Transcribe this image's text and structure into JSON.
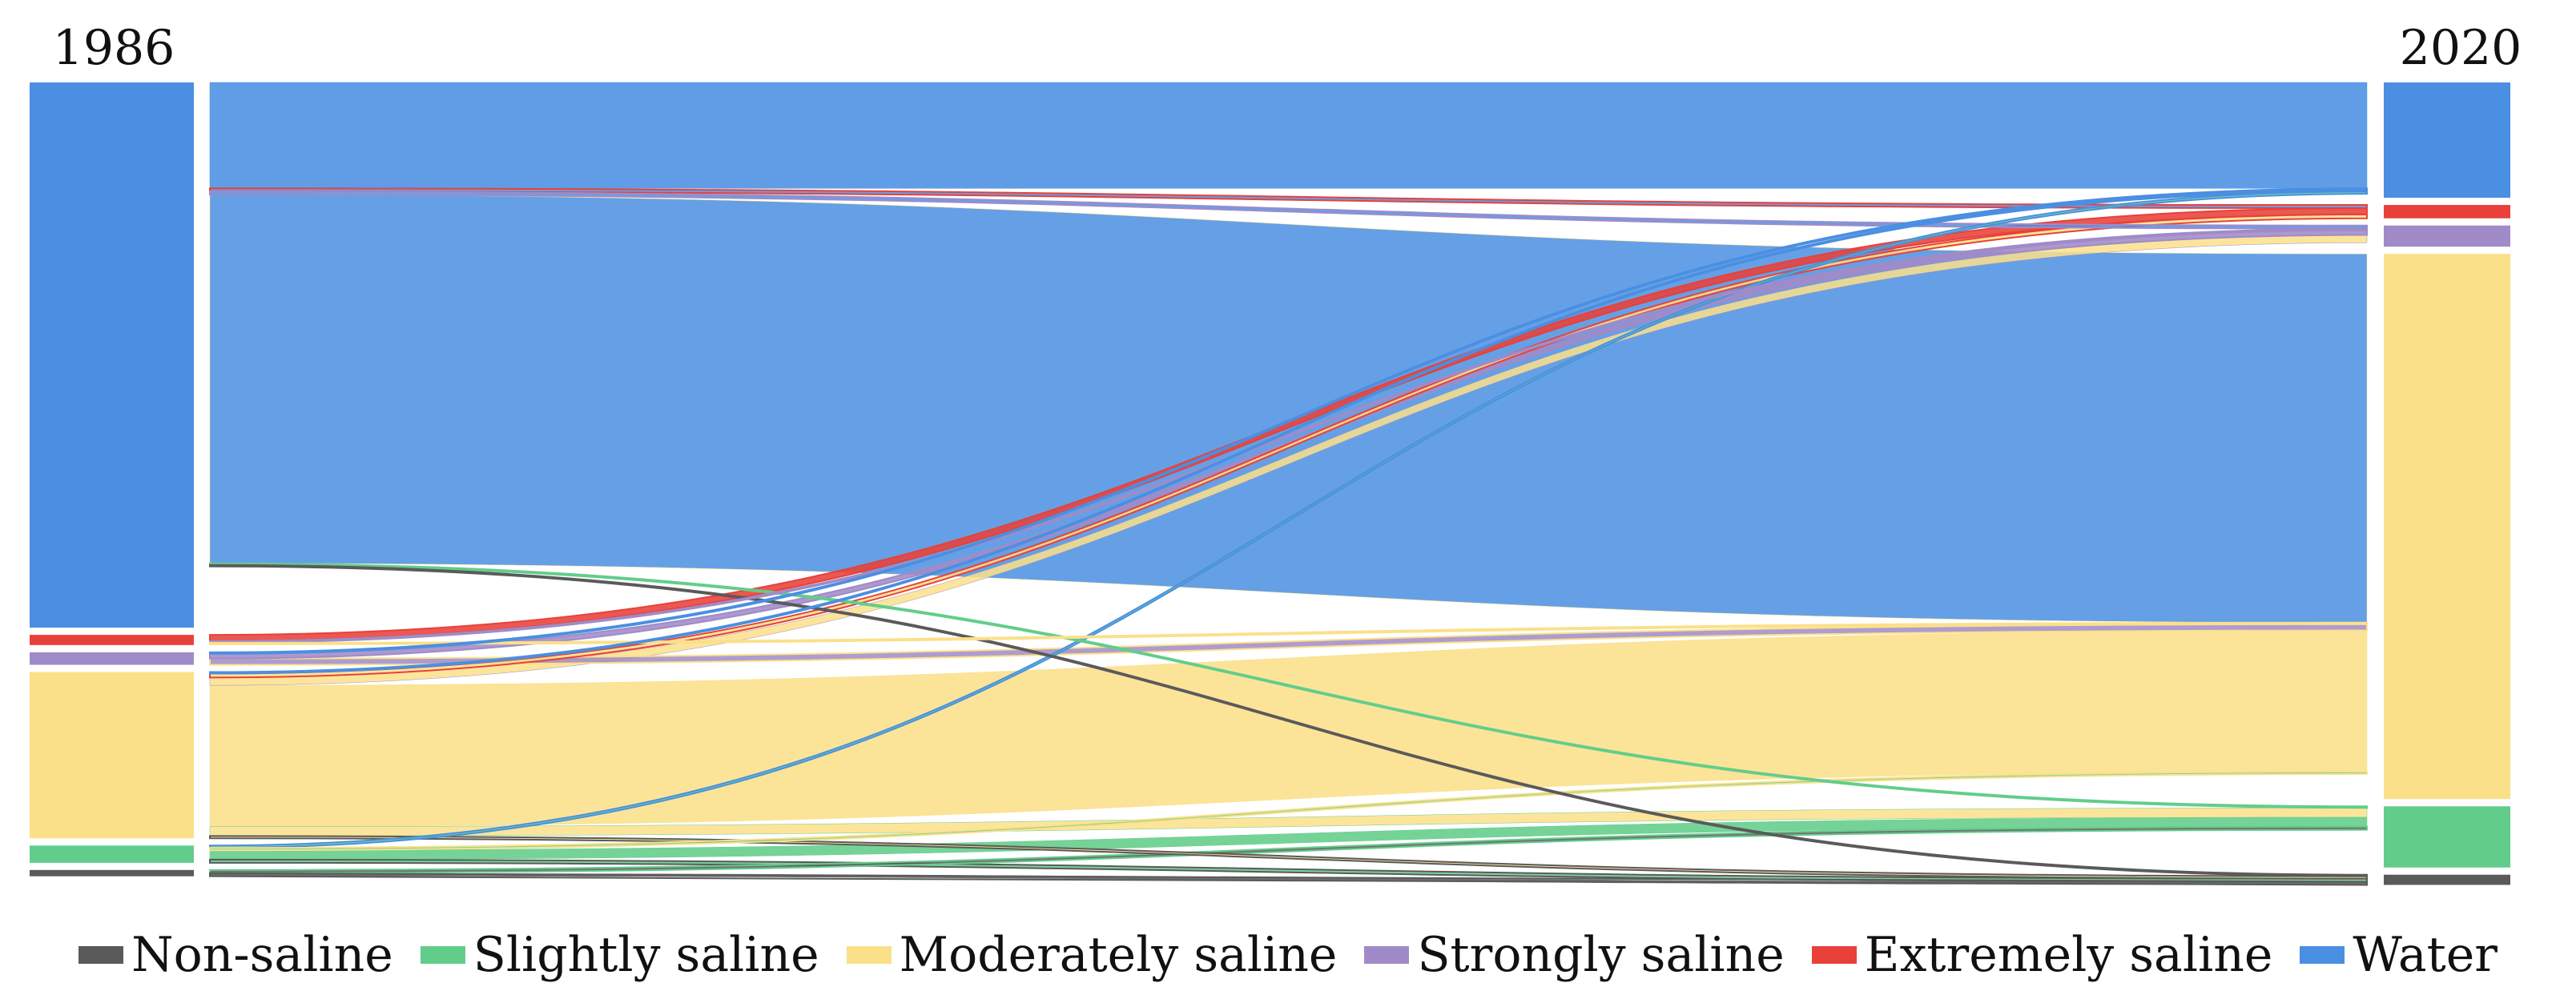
{
  "chart_data": {
    "type": "sankey",
    "source_year": "1986",
    "target_year": "2020",
    "categories": [
      "Non-saline",
      "Slightly saline",
      "Moderately saline",
      "Strongly saline",
      "Extremely saline",
      "Water"
    ],
    "colors": {
      "Non-saline": "#5a5a5a",
      "Slightly saline": "#62cd8a",
      "Moderately saline": "#fbe08a",
      "Strongly saline": "#a08bc8",
      "Extremely saline": "#e8413a",
      "Water": "#4a8fe2"
    },
    "node_order_top_to_bottom": [
      "Water",
      "Extremely saline",
      "Strongly saline",
      "Moderately saline",
      "Slightly saline",
      "Non-saline"
    ],
    "source_share_1986": {
      "Water": 0.695,
      "Extremely saline": 0.013,
      "Strongly saline": 0.016,
      "Moderately saline": 0.212,
      "Slightly saline": 0.022,
      "Non-saline": 0.008
    },
    "target_share_2020": {
      "Water": 0.147,
      "Extremely saline": 0.017,
      "Strongly saline": 0.027,
      "Moderately saline": 0.695,
      "Slightly saline": 0.078,
      "Non-saline": 0.013
    },
    "flows": [
      {
        "from": "Water",
        "to": "Water",
        "value": 0.135
      },
      {
        "from": "Water",
        "to": "Extremely saline",
        "value": 0.004
      },
      {
        "from": "Water",
        "to": "Strongly saline",
        "value": 0.004
      },
      {
        "from": "Water",
        "to": "Moderately saline",
        "value": 0.47
      },
      {
        "from": "Water",
        "to": "Slightly saline",
        "value": 0.002
      },
      {
        "from": "Water",
        "to": "Non-saline",
        "value": 0.002
      },
      {
        "from": "Extremely saline",
        "to": "Extremely saline",
        "value": 0.008
      },
      {
        "from": "Extremely saline",
        "to": "Strongly saline",
        "value": 0.002
      },
      {
        "from": "Extremely saline",
        "to": "Moderately saline",
        "value": 0.002
      },
      {
        "from": "Strongly saline",
        "to": "Strongly saline",
        "value": 0.006
      },
      {
        "from": "Strongly saline",
        "to": "Moderately saline",
        "value": 0.008
      },
      {
        "from": "Strongly saline",
        "to": "Water",
        "value": 0.002
      },
      {
        "from": "Moderately saline",
        "to": "Water",
        "value": 0.002
      },
      {
        "from": "Moderately saline",
        "to": "Extremely saline",
        "value": 0.005
      },
      {
        "from": "Moderately saline",
        "to": "Strongly saline",
        "value": 0.01
      },
      {
        "from": "Moderately saline",
        "to": "Moderately saline",
        "value": 0.18
      },
      {
        "from": "Moderately saline",
        "to": "Slightly saline",
        "value": 0.012
      },
      {
        "from": "Moderately saline",
        "to": "Non-saline",
        "value": 0.003
      },
      {
        "from": "Slightly saline",
        "to": "Water",
        "value": 0.003
      },
      {
        "from": "Slightly saline",
        "to": "Moderately saline",
        "value": 0.003
      },
      {
        "from": "Slightly saline",
        "to": "Slightly saline",
        "value": 0.012
      },
      {
        "from": "Slightly saline",
        "to": "Non-saline",
        "value": 0.004
      },
      {
        "from": "Non-saline",
        "to": "Slightly saline",
        "value": 0.004
      },
      {
        "from": "Non-saline",
        "to": "Non-saline",
        "value": 0.004
      }
    ],
    "legend": [
      "Non-saline",
      "Slightly saline",
      "Moderately saline",
      "Strongly saline",
      "Extremely saline",
      "Water"
    ],
    "legend_placement": "bottom"
  }
}
